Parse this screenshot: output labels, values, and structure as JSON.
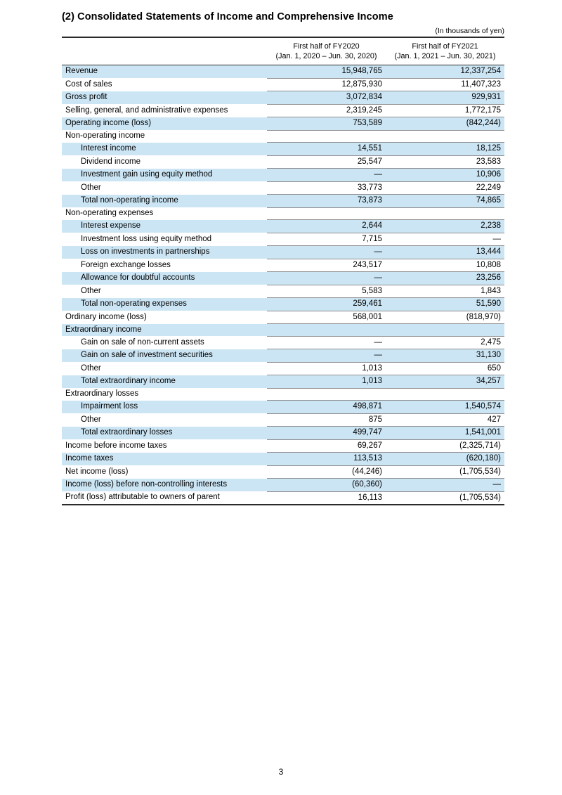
{
  "page": {
    "title": "(2) Consolidated Statements of Income and Comprehensive Income",
    "unit_note": "(In thousands of yen)",
    "page_number": "3"
  },
  "table": {
    "columns": [
      {
        "line1": "First half of FY2020",
        "line2": "(Jan. 1, 2020 – Jun. 30, 2020)"
      },
      {
        "line1": "First half of FY2021",
        "line2": "(Jan. 1, 2021 – Jun. 30, 2021)"
      }
    ],
    "rows": [
      {
        "label": "Revenue",
        "indent": 0,
        "v1": "15,948,765",
        "v2": "12,337,254"
      },
      {
        "label": "Cost of sales",
        "indent": 0,
        "v1": "12,875,930",
        "v2": "11,407,323"
      },
      {
        "label": "Gross profit",
        "indent": 0,
        "v1": "3,072,834",
        "v2": "929,931"
      },
      {
        "label": "Selling, general, and administrative expenses",
        "indent": 0,
        "v1": "2,319,245",
        "v2": "1,772,175"
      },
      {
        "label": "Operating income (loss)",
        "indent": 0,
        "v1": "753,589",
        "v2": "(842,244)"
      },
      {
        "label": "Non-operating income",
        "indent": 0,
        "v1": "",
        "v2": ""
      },
      {
        "label": "Interest income",
        "indent": 1,
        "v1": "14,551",
        "v2": "18,125"
      },
      {
        "label": "Dividend income",
        "indent": 1,
        "v1": "25,547",
        "v2": "23,583"
      },
      {
        "label": "Investment gain using equity method",
        "indent": 1,
        "v1": "—",
        "v2": "10,906"
      },
      {
        "label": "Other",
        "indent": 1,
        "v1": "33,773",
        "v2": "22,249"
      },
      {
        "label": "Total non-operating income",
        "indent": 1,
        "v1": "73,873",
        "v2": "74,865"
      },
      {
        "label": "Non-operating expenses",
        "indent": 0,
        "v1": "",
        "v2": ""
      },
      {
        "label": "Interest expense",
        "indent": 1,
        "v1": "2,644",
        "v2": "2,238"
      },
      {
        "label": "Investment loss using equity method",
        "indent": 1,
        "v1": "7,715",
        "v2": "—"
      },
      {
        "label": "Loss on investments in partnerships",
        "indent": 1,
        "v1": "—",
        "v2": "13,444"
      },
      {
        "label": "Foreign exchange losses",
        "indent": 1,
        "v1": "243,517",
        "v2": "10,808"
      },
      {
        "label": "Allowance for doubtful accounts",
        "indent": 1,
        "v1": "—",
        "v2": "23,256"
      },
      {
        "label": "Other",
        "indent": 1,
        "v1": "5,583",
        "v2": "1,843"
      },
      {
        "label": "Total non-operating expenses",
        "indent": 1,
        "v1": "259,461",
        "v2": "51,590"
      },
      {
        "label": "Ordinary income (loss)",
        "indent": 0,
        "v1": "568,001",
        "v2": "(818,970)"
      },
      {
        "label": "Extraordinary income",
        "indent": 0,
        "v1": "",
        "v2": ""
      },
      {
        "label": "Gain on sale of non-current assets",
        "indent": 1,
        "v1": "—",
        "v2": "2,475"
      },
      {
        "label": "Gain on sale of investment securities",
        "indent": 1,
        "v1": "—",
        "v2": "31,130"
      },
      {
        "label": "Other",
        "indent": 1,
        "v1": "1,013",
        "v2": "650"
      },
      {
        "label": "Total extraordinary income",
        "indent": 1,
        "v1": "1,013",
        "v2": "34,257"
      },
      {
        "label": "Extraordinary losses",
        "indent": 0,
        "v1": "",
        "v2": ""
      },
      {
        "label": "Impairment loss",
        "indent": 1,
        "v1": "498,871",
        "v2": "1,540,574"
      },
      {
        "label": "Other",
        "indent": 1,
        "v1": "875",
        "v2": "427"
      },
      {
        "label": "Total extraordinary losses",
        "indent": 1,
        "v1": "499,747",
        "v2": "1,541,001"
      },
      {
        "label": "Income before income taxes",
        "indent": 0,
        "v1": "69,267",
        "v2": "(2,325,714)"
      },
      {
        "label": "Income taxes",
        "indent": 0,
        "v1": "113,513",
        "v2": "(620,180)"
      },
      {
        "label": "Net income (loss)",
        "indent": 0,
        "v1": "(44,246)",
        "v2": "(1,705,534)"
      },
      {
        "label": "Income (loss) before non-controlling interests",
        "indent": 0,
        "v1": "(60,360)",
        "v2": "—"
      },
      {
        "label": "Profit (loss) attributable to owners of parent",
        "indent": 0,
        "v1": "16,113",
        "v2": "(1,705,534)"
      }
    ]
  }
}
